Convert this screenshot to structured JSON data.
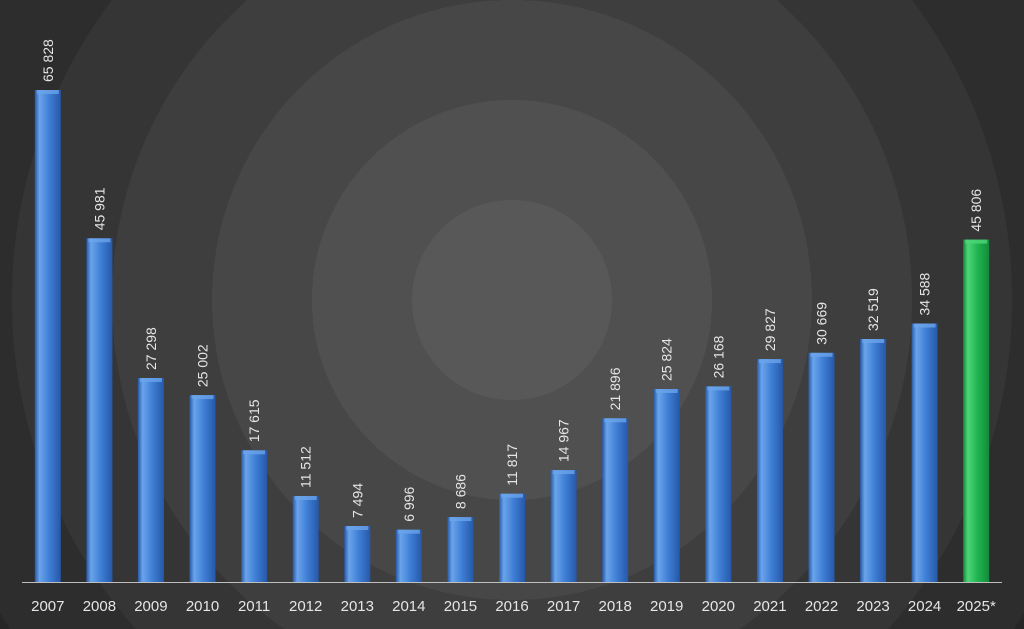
{
  "chart_data": {
    "type": "bar",
    "categories": [
      "2007",
      "2008",
      "2009",
      "2010",
      "2011",
      "2012",
      "2013",
      "2014",
      "2015",
      "2016",
      "2017",
      "2018",
      "2019",
      "2020",
      "2021",
      "2022",
      "2023",
      "2024",
      "2025*"
    ],
    "values": [
      65828,
      45981,
      27298,
      25002,
      17615,
      11512,
      7494,
      6996,
      8686,
      11817,
      14967,
      21896,
      25824,
      26168,
      29827,
      30669,
      32519,
      34588,
      45806
    ],
    "value_labels": [
      "65 828",
      "45 981",
      "27 298",
      "25 002",
      "17 615",
      "11 512",
      "7 494",
      "6 996",
      "8 686",
      "11 817",
      "14 967",
      "21 896",
      "25 824",
      "26 168",
      "29 827",
      "30 669",
      "32 519",
      "34 588",
      "45 806"
    ],
    "highlight_category": "2025*",
    "colors": {
      "bar": "#3f7fd6",
      "bar_light": "#6aa4ea",
      "bar_dark": "#2658a8",
      "highlight": "#1fb54f",
      "highlight_light": "#4fd57a",
      "highlight_dark": "#138a3a",
      "axis": "#bfbfbf",
      "text": "#e6e6e6"
    },
    "ylim": [
      0,
      66000
    ],
    "grid": false,
    "legend": "none",
    "title": "",
    "xlabel": "",
    "ylabel": ""
  }
}
